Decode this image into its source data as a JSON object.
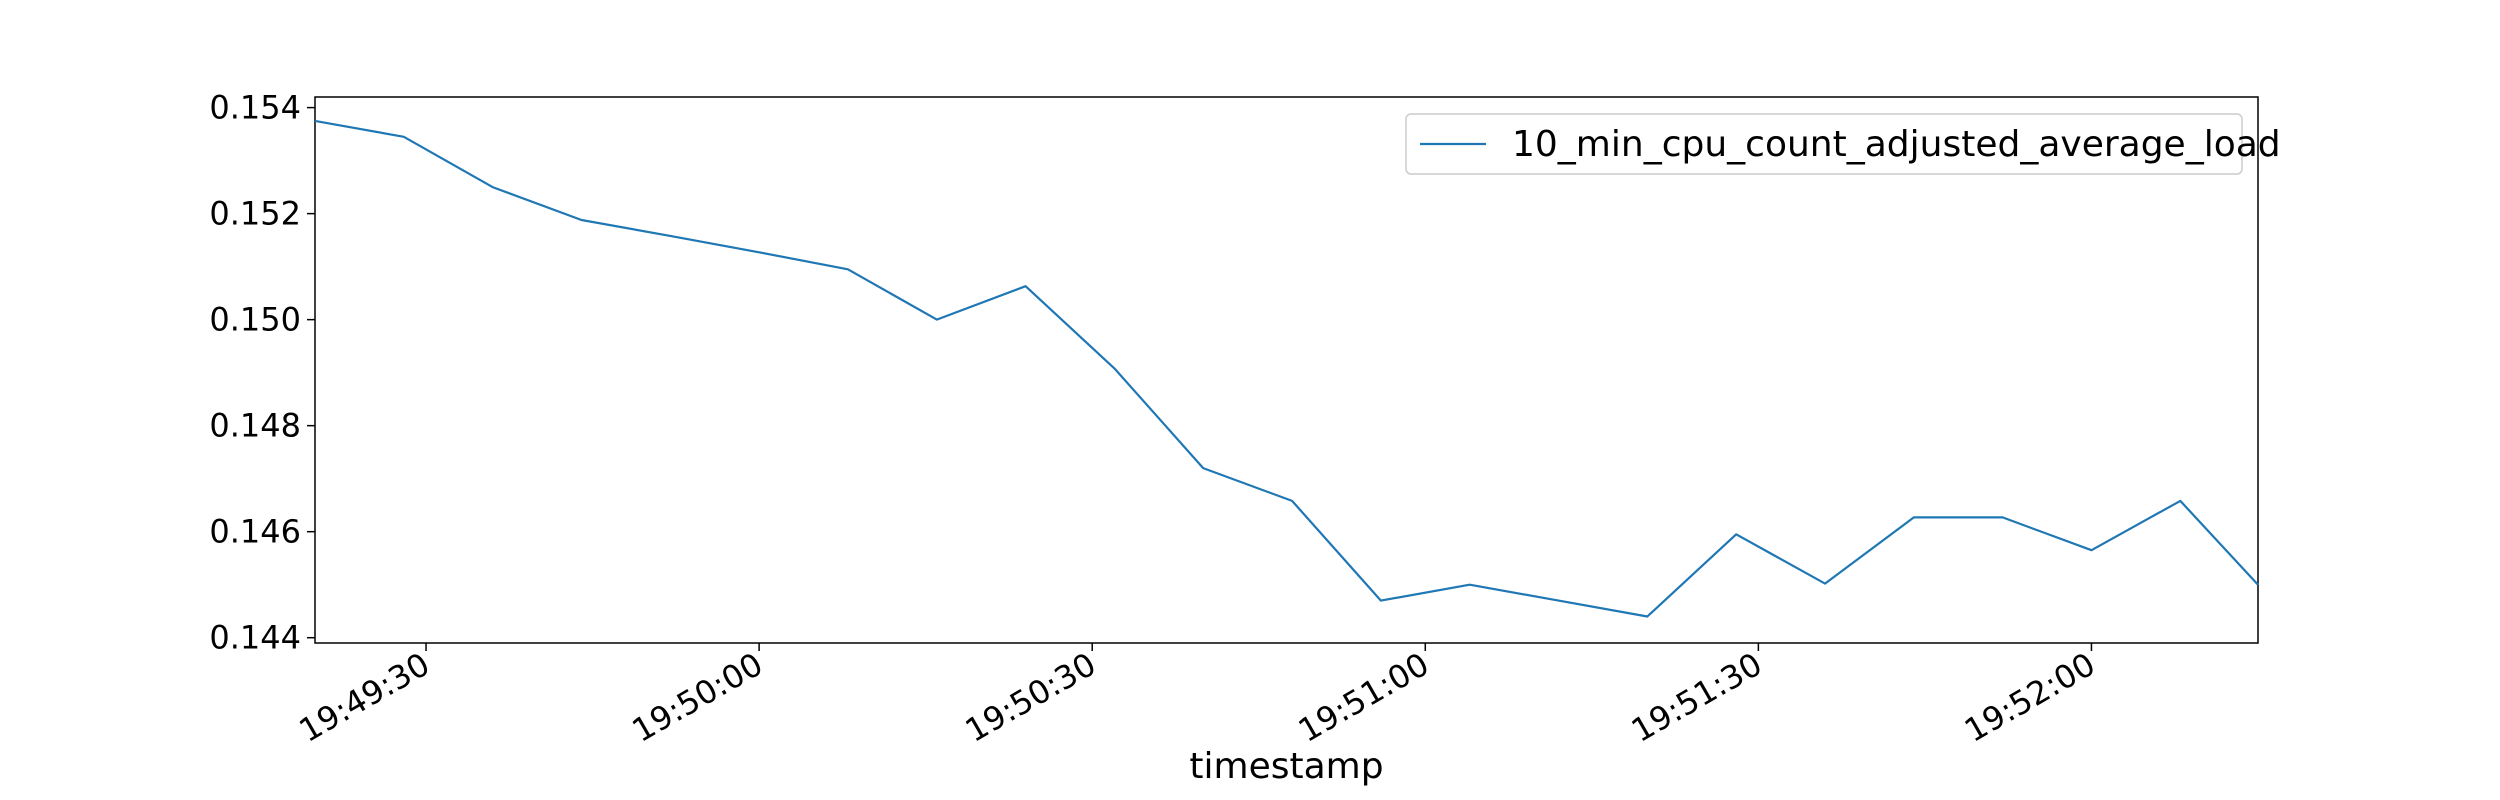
{
  "chart_data": {
    "type": "line",
    "title": "",
    "xlabel": "timestamp",
    "ylabel": "",
    "x_type": "time",
    "xlim": [
      "19:49:20",
      "19:52:15"
    ],
    "ylim": [
      0.1439,
      0.1542
    ],
    "grid": false,
    "legend": {
      "placement": "top-right"
    },
    "x_ticks": [
      "19:49:30",
      "19:50:00",
      "19:50:30",
      "19:51:00",
      "19:51:30",
      "19:52:00"
    ],
    "y_ticks": [
      "0.144",
      "0.146",
      "0.148",
      "0.150",
      "0.152",
      "0.154"
    ],
    "x": [
      "19:49:20",
      "19:49:28",
      "19:49:36",
      "19:49:44",
      "19:49:52",
      "19:50:00",
      "19:50:08",
      "19:50:16",
      "19:50:24",
      "19:50:32",
      "19:50:40",
      "19:50:48",
      "19:50:56",
      "19:51:04",
      "19:51:12",
      "19:51:20",
      "19:51:28",
      "19:51:36",
      "19:51:44",
      "19:51:52",
      "19:52:00",
      "19:52:08",
      "19:52:15"
    ],
    "series": [
      {
        "name": "10_min_cpu_count_adjusted_average_load",
        "color": "#1f77b4",
        "values": [
          0.15375,
          0.15345,
          0.1525,
          0.15188,
          0.15158,
          0.15127,
          0.15095,
          0.15,
          0.15063,
          0.14908,
          0.1472,
          0.14658,
          0.1447,
          0.145,
          0.1447,
          0.1444,
          0.14595,
          0.14502,
          0.14627,
          0.14627,
          0.14565,
          0.14658,
          0.145
        ]
      }
    ]
  }
}
